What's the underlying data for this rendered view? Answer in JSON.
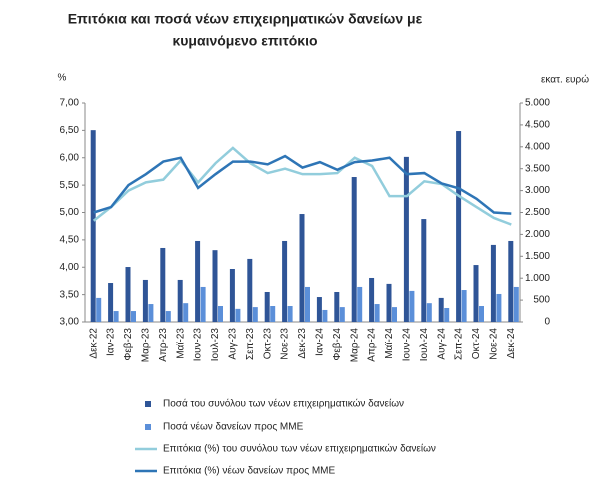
{
  "chart_data": {
    "type": "combo",
    "title": [
      "Επιτόκια και ποσά νέων επιχειρηματικών δανείων με",
      "κυμαινόμενο επιτόκιο"
    ],
    "y_label": "%",
    "y2_label": "εκατ. ευρώ",
    "categories": [
      "Δεκ-22",
      "Ιαν-23",
      "Φεβ-23",
      "Μαρ-23",
      "Απρ-23",
      "Μαϊ-23",
      "Ιουν-23",
      "Ιουλ-23",
      "Αυγ-23",
      "Σεπ-23",
      "Οκτ-23",
      "Νοε-23",
      "Δεκ-23",
      "Ιαν-24",
      "Φεβ-24",
      "Μαρ-24",
      "Απρ-24",
      "Μαϊ-24",
      "Ιουν-24",
      "Ιουλ-24",
      "Αυγ-24",
      "Σεπ-24",
      "Οκτ-24",
      "Νοε-24",
      "Δεκ-24"
    ],
    "ylim": [
      3,
      7
    ],
    "yticks": [
      {
        "value": 3,
        "label": "3,00"
      },
      {
        "value": 3.5,
        "label": "3,50"
      },
      {
        "value": 4,
        "label": "4,00"
      },
      {
        "value": 4.5,
        "label": "4,50"
      },
      {
        "value": 5,
        "label": "5,00"
      },
      {
        "value": 5.5,
        "label": "5,50"
      },
      {
        "value": 6,
        "label": "6,00"
      },
      {
        "value": 6.5,
        "label": "6,50"
      },
      {
        "value": 7,
        "label": "7,00"
      }
    ],
    "y2lim": [
      0,
      5000
    ],
    "y2ticks": [
      0,
      500,
      {
        "value": 1000,
        "label": "1.000"
      },
      {
        "value": 1500,
        "label": "1.500"
      },
      {
        "value": 2000,
        "label": "2.000"
      },
      {
        "value": 2500,
        "label": "2.500"
      },
      {
        "value": 3000,
        "label": "3.000"
      },
      {
        "value": 3500,
        "label": "3.500"
      },
      {
        "value": 4000,
        "label": "4.000"
      },
      {
        "value": 4500,
        "label": "4.500"
      },
      {
        "value": 5000,
        "label": "5.000"
      }
    ],
    "series": [
      {
        "name": "Ποσά του συνόλου των νέων επιχειρηματικών δανείων",
        "type": "bar",
        "axis": "y2",
        "color": "#2f5597",
        "values": [
          4380,
          890,
          1255,
          960,
          1690,
          960,
          1850,
          1640,
          1210,
          1440,
          685,
          1850,
          2465,
          570,
          685,
          3310,
          1005,
          870,
          3770,
          2350,
          550,
          4360,
          1300,
          1760,
          1850
        ]
      },
      {
        "name": "Ποσά νέων δανείων προς ΜΜΕ",
        "type": "bar",
        "axis": "y2",
        "color": "#5b8fd9",
        "values": [
          550,
          250,
          250,
          410,
          250,
          430,
          800,
          365,
          300,
          340,
          365,
          365,
          800,
          275,
          340,
          800,
          410,
          340,
          710,
          430,
          320,
          730,
          365,
          640,
          800
        ]
      },
      {
        "name": "Επιτόκια (%) του συνόλου των νέων επιχειρηματικών δανείων",
        "type": "line",
        "color": "#92cddc",
        "values": [
          4.85,
          5.1,
          5.4,
          5.55,
          5.6,
          5.95,
          5.55,
          5.9,
          6.18,
          5.9,
          5.72,
          5.8,
          5.7,
          5.7,
          5.72,
          6.0,
          5.85,
          5.3,
          5.3,
          5.57,
          5.52,
          5.3,
          5.1,
          4.9,
          4.78
        ]
      },
      {
        "name": "Επιτόκια (%) νέων δανείων προς ΜΜΕ",
        "type": "line",
        "color": "#2e75b6",
        "values": [
          5.0,
          5.1,
          5.5,
          5.7,
          5.93,
          6.0,
          5.45,
          5.7,
          5.93,
          5.93,
          5.88,
          6.03,
          5.82,
          5.92,
          5.78,
          5.92,
          5.95,
          6.0,
          5.7,
          5.72,
          5.53,
          5.44,
          5.25,
          5.0,
          4.98
        ]
      }
    ]
  }
}
